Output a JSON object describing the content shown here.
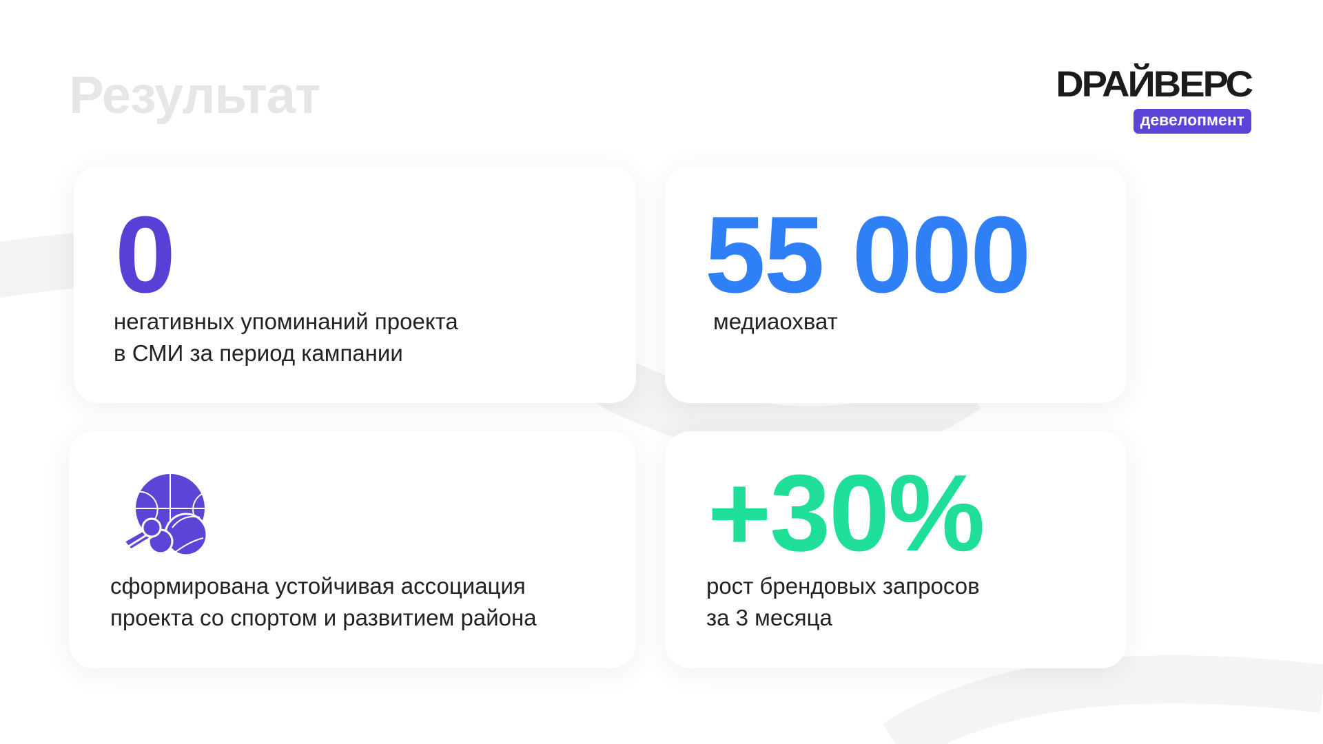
{
  "title": "Результат",
  "logo": {
    "word": "DРАЙВЕРС",
    "badge": "девелопмент"
  },
  "cards": [
    {
      "value": "0",
      "lines": [
        "негативных упоминаний проекта",
        "в СМИ за период кампании"
      ],
      "color": "#5a3fd6"
    },
    {
      "value": "55 000",
      "lines": [
        "медиаохват"
      ],
      "color": "#2f80f7"
    },
    {
      "icon": "sports-balls-icon",
      "lines": [
        "сформирована устойчивая ассоциация",
        "проекта со спортом и развитием района"
      ],
      "color": "#5a45d6"
    },
    {
      "value": "+30%",
      "lines": [
        "рост брендовых запросов",
        "за 3 месяца"
      ],
      "color": "#1fdf98"
    }
  ]
}
